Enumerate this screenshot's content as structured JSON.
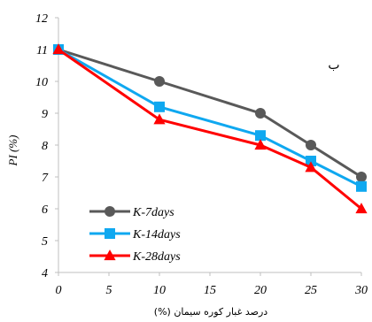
{
  "chart_data": {
    "type": "line",
    "title": "",
    "xlabel": "درصد غبار کوره سیمان (%)",
    "ylabel": "PI (%)",
    "annotation": "ب",
    "xlim": [
      0,
      30
    ],
    "ylim": [
      4,
      12
    ],
    "x_ticks": [
      "0",
      "5",
      "10",
      "15",
      "20",
      "25",
      "30"
    ],
    "y_ticks": [
      "4",
      "5",
      "6",
      "7",
      "8",
      "9",
      "10",
      "11",
      "12"
    ],
    "grid": false,
    "legend_position": "bottom-left",
    "x": [
      0,
      10,
      20,
      25,
      30
    ],
    "series": [
      {
        "name": "K-7days",
        "color": "#595959",
        "marker": "circle",
        "values": [
          11,
          10,
          9,
          8,
          7
        ]
      },
      {
        "name": "K-14days",
        "color": "#0fa8f0",
        "marker": "square",
        "values": [
          11,
          9.2,
          8.3,
          7.5,
          6.7
        ]
      },
      {
        "name": "K-28days",
        "color": "#ff0000",
        "marker": "triangle",
        "values": [
          11,
          8.8,
          8,
          7.3,
          6
        ]
      }
    ]
  }
}
